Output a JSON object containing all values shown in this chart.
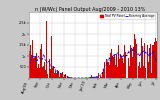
{
  "title": "n (W/Wc) Panel Output Aug/2009 - 2010 13%",
  "bg_color": "#c8c8c8",
  "plot_bg": "#ffffff",
  "grid_color": "#bbbbbb",
  "bar_color": "#dd0000",
  "avg_color": "#0000bb",
  "avg_style": "--",
  "ylim": [
    0,
    3000
  ],
  "yticks": [
    500,
    1000,
    1500,
    2000,
    2500
  ],
  "ytick_labels": [
    "500",
    "1k",
    "1.5k",
    "2k",
    "2.5k"
  ],
  "num_bars": 365,
  "legend_items": [
    "Total PV Panel",
    "Running Average"
  ],
  "legend_colors": [
    "#dd0000",
    "#0000bb"
  ],
  "tick_fontsize": 2.5,
  "title_fontsize": 3.5
}
